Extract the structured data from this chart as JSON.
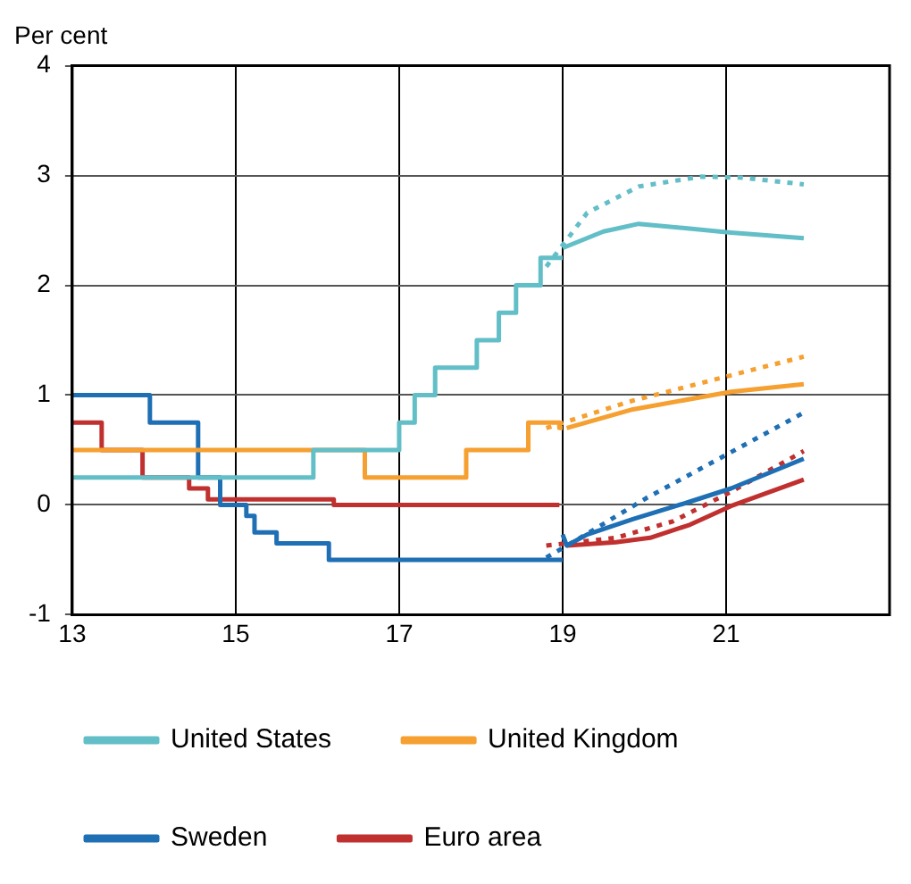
{
  "chart_data": {
    "type": "line",
    "ylabel": "Per cent",
    "xlim": [
      13,
      23
    ],
    "xticks": [
      13,
      15,
      17,
      19,
      21
    ],
    "ylim": [
      -1,
      4
    ],
    "yticks": [
      -1,
      0,
      1,
      2,
      3,
      4
    ],
    "grid": true,
    "legend": "bottom",
    "marker": "none",
    "series": [
      {
        "name": "United States",
        "type": "step",
        "color": "#62bec7",
        "x": [
          13,
          15.95,
          17.0,
          17.19,
          17.44,
          17.95,
          18.22,
          18.43,
          18.73,
          19.0
        ],
        "values": [
          0.25,
          0.5,
          0.75,
          1.0,
          1.25,
          1.5,
          1.75,
          2.0,
          2.25,
          2.25
        ]
      },
      {
        "name": "United Kingdom",
        "type": "step",
        "color": "#f5a030",
        "x": [
          13,
          16.58,
          17.82,
          18.58,
          18.96,
          19.0
        ],
        "values": [
          0.5,
          0.25,
          0.5,
          0.75,
          0.7,
          0.7
        ]
      },
      {
        "name": "Sweden",
        "type": "step",
        "color": "#1f6fb5",
        "x": [
          13,
          13.95,
          14.54,
          14.81,
          15.13,
          15.23,
          15.5,
          16.14,
          19.0
        ],
        "values": [
          1.0,
          0.75,
          0.25,
          0.0,
          -0.1,
          -0.25,
          -0.35,
          -0.5,
          -0.5
        ]
      },
      {
        "name": "Euro area",
        "type": "step",
        "color": "#c0302f",
        "x": [
          13,
          13.36,
          13.86,
          14.43,
          14.66,
          16.2,
          18.96
        ],
        "values": [
          0.75,
          0.5,
          0.25,
          0.15,
          0.05,
          0.0,
          0.0
        ]
      },
      {
        "color": "#62bec7",
        "line_style": "solid",
        "x": [
          19.0,
          19.5,
          19.93,
          20.5,
          21.06,
          21.95
        ],
        "values": [
          2.34,
          2.49,
          2.56,
          2.52,
          2.48,
          2.43
        ]
      },
      {
        "color": "#62bec7",
        "line_style": "dotted",
        "x": [
          18.8,
          19.3,
          19.93,
          20.7,
          21.2,
          21.95
        ],
        "values": [
          2.17,
          2.66,
          2.9,
          2.99,
          2.98,
          2.92
        ]
      },
      {
        "color": "#f5a030",
        "line_style": "solid",
        "x": [
          19.05,
          19.86,
          21.06,
          21.95
        ],
        "values": [
          0.7,
          0.87,
          1.03,
          1.1
        ]
      },
      {
        "color": "#f5a030",
        "line_style": "dotted",
        "x": [
          18.8,
          19.86,
          21.06,
          21.95
        ],
        "values": [
          0.7,
          0.95,
          1.18,
          1.35
        ]
      },
      {
        "color": "#1f6fb5",
        "line_style": "solid",
        "x": [
          19.0,
          19.05,
          19.3,
          19.86,
          20.56,
          21.06,
          21.95
        ],
        "values": [
          -0.27,
          -0.37,
          -0.27,
          -0.13,
          0.03,
          0.15,
          0.42
        ]
      },
      {
        "color": "#1f6fb5",
        "line_style": "dotted",
        "x": [
          18.8,
          19.17,
          20.02,
          21.06,
          21.95
        ],
        "values": [
          -0.48,
          -0.32,
          0.06,
          0.48,
          0.84
        ]
      },
      {
        "color": "#c0302f",
        "line_style": "solid",
        "x": [
          19.05,
          19.65,
          20.07,
          20.56,
          21.06,
          21.95
        ],
        "values": [
          -0.37,
          -0.34,
          -0.3,
          -0.18,
          -0.01,
          0.23
        ]
      },
      {
        "color": "#c0302f",
        "line_style": "dotted",
        "x": [
          18.8,
          19.65,
          20.35,
          21.06,
          21.95
        ],
        "values": [
          -0.37,
          -0.3,
          -0.15,
          0.12,
          0.49
        ]
      }
    ]
  }
}
